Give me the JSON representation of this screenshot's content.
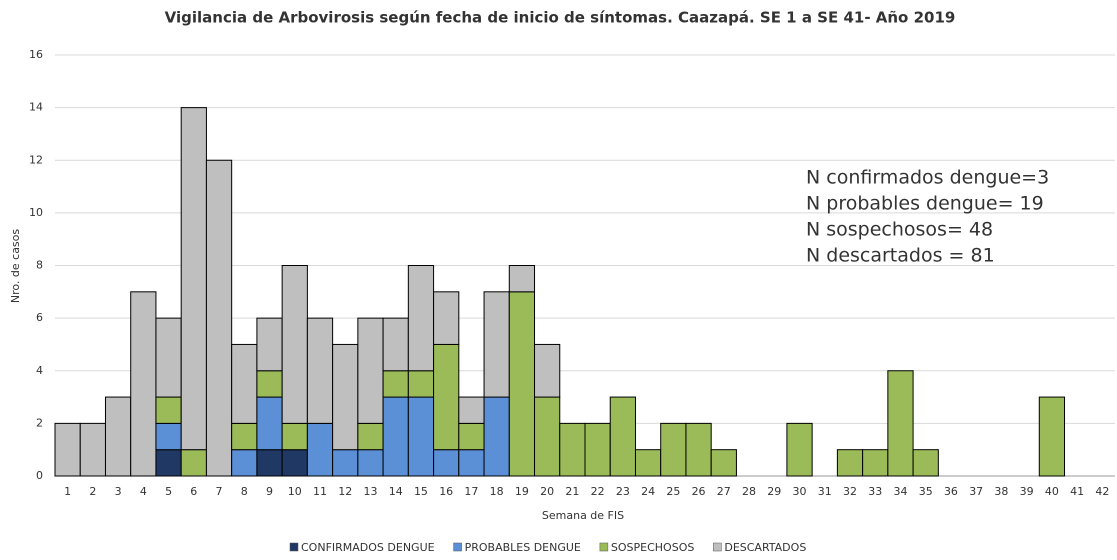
{
  "chart_data": {
    "type": "stacked_bar",
    "title": "Vigilancia de Arbovirosis según fecha de inicio de síntomas. Caazapá. SE 1 a SE 41- Año 2019",
    "x_label": "Semana de FIS",
    "y_label": "Nro. de casos",
    "categories": [
      "1",
      "2",
      "3",
      "4",
      "5",
      "6",
      "7",
      "8",
      "9",
      "10",
      "11",
      "12",
      "13",
      "14",
      "15",
      "16",
      "17",
      "18",
      "19",
      "20",
      "21",
      "22",
      "23",
      "24",
      "25",
      "26",
      "27",
      "28",
      "29",
      "30",
      "31",
      "32",
      "33",
      "34",
      "35",
      "36",
      "37",
      "38",
      "39",
      "40",
      "41",
      "42"
    ],
    "series": [
      {
        "name": "CONFIRMADOS DENGUE",
        "color": "#1f3864",
        "values": [
          0,
          0,
          0,
          0,
          1,
          0,
          0,
          0,
          1,
          1,
          0,
          0,
          0,
          0,
          0,
          0,
          0,
          0,
          0,
          0,
          0,
          0,
          0,
          0,
          0,
          0,
          0,
          0,
          0,
          0,
          0,
          0,
          0,
          0,
          0,
          0,
          0,
          0,
          0,
          0,
          0,
          0
        ]
      },
      {
        "name": "PROBABLES DENGUE",
        "color": "#5b8fd6",
        "values": [
          0,
          0,
          0,
          0,
          1,
          0,
          0,
          1,
          2,
          0,
          2,
          1,
          1,
          3,
          3,
          1,
          1,
          3,
          0,
          0,
          0,
          0,
          0,
          0,
          0,
          0,
          0,
          0,
          0,
          0,
          0,
          0,
          0,
          0,
          0,
          0,
          0,
          0,
          0,
          0,
          0,
          0
        ]
      },
      {
        "name": "SOSPECHOSOS",
        "color": "#9bbb59",
        "values": [
          0,
          0,
          0,
          0,
          1,
          1,
          0,
          1,
          1,
          1,
          0,
          0,
          1,
          1,
          1,
          4,
          1,
          0,
          7,
          3,
          2,
          2,
          3,
          1,
          2,
          2,
          1,
          0,
          0,
          2,
          0,
          1,
          1,
          4,
          1,
          0,
          0,
          0,
          0,
          3,
          0,
          0
        ]
      },
      {
        "name": "DESCARTADOS",
        "color": "#bfbfbf",
        "values": [
          2,
          2,
          3,
          7,
          3,
          13,
          12,
          3,
          2,
          6,
          4,
          4,
          4,
          2,
          4,
          2,
          1,
          4,
          1,
          2,
          0,
          0,
          0,
          0,
          0,
          0,
          0,
          0,
          0,
          0,
          0,
          0,
          0,
          0,
          0,
          0,
          0,
          0,
          0,
          0,
          0,
          0
        ]
      }
    ],
    "ylim": [
      0,
      16
    ],
    "yticks": [
      0,
      2,
      4,
      6,
      8,
      10,
      12,
      14,
      16
    ],
    "grid": true,
    "annotations": [
      "N confirmados dengue=3",
      "N probables dengue=  19",
      "N sospechosos=  48",
      "N descartados =  81"
    ],
    "legend": "bottom"
  }
}
